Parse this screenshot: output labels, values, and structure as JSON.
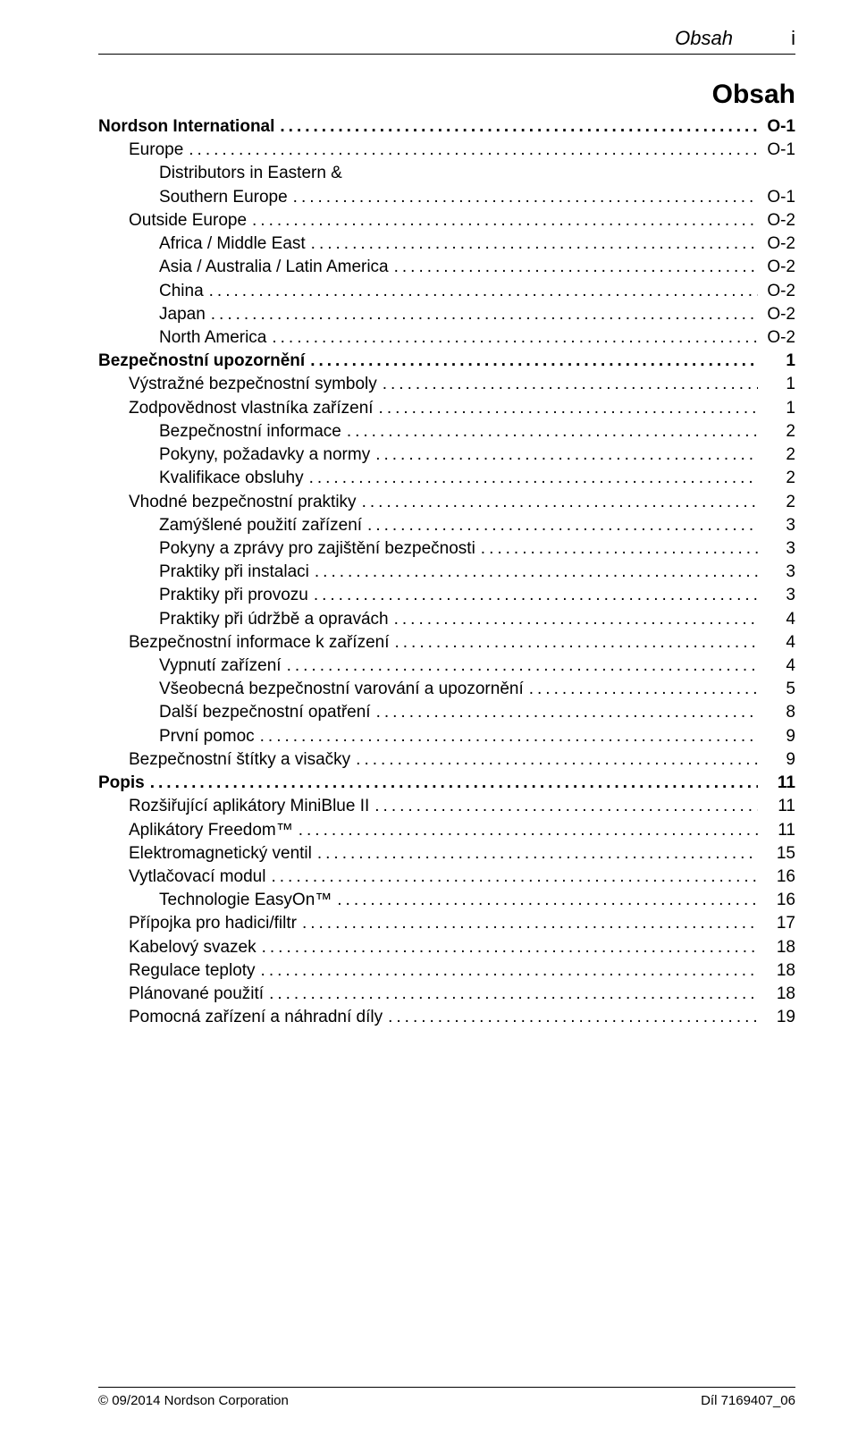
{
  "header": {
    "chapter_name": "Obsah",
    "chapter_num": "i"
  },
  "title": "Obsah",
  "toc": [
    {
      "label": "Nordson International",
      "page": "O-1",
      "indent": 0,
      "bold": true
    },
    {
      "label": "Europe",
      "page": "O-1",
      "indent": 1,
      "bold": false
    },
    {
      "label": "Distributors in Eastern &",
      "page": null,
      "indent": 2,
      "bold": false
    },
    {
      "label": "Southern Europe",
      "page": "O-1",
      "indent": 2,
      "bold": false
    },
    {
      "label": "Outside Europe",
      "page": "O-2",
      "indent": 1,
      "bold": false
    },
    {
      "label": "Africa / Middle East",
      "page": "O-2",
      "indent": 2,
      "bold": false
    },
    {
      "label": "Asia / Australia / Latin America",
      "page": "O-2",
      "indent": 2,
      "bold": false
    },
    {
      "label": "China",
      "page": "O-2",
      "indent": 2,
      "bold": false
    },
    {
      "label": "Japan",
      "page": "O-2",
      "indent": 2,
      "bold": false
    },
    {
      "label": "North America",
      "page": "O-2",
      "indent": 2,
      "bold": false
    },
    {
      "label": "Bezpečnostní upozornění",
      "page": "1",
      "indent": 0,
      "bold": true
    },
    {
      "label": "Výstražné bezpečnostní symboly",
      "page": "1",
      "indent": 1,
      "bold": false
    },
    {
      "label": "Zodpovědnost vlastníka zařízení",
      "page": "1",
      "indent": 1,
      "bold": false
    },
    {
      "label": "Bezpečnostní informace",
      "page": "2",
      "indent": 2,
      "bold": false
    },
    {
      "label": "Pokyny, požadavky a normy",
      "page": "2",
      "indent": 2,
      "bold": false
    },
    {
      "label": "Kvalifikace obsluhy",
      "page": "2",
      "indent": 2,
      "bold": false
    },
    {
      "label": "Vhodné bezpečnostní praktiky",
      "page": "2",
      "indent": 1,
      "bold": false
    },
    {
      "label": "Zamýšlené použití zařízení",
      "page": "3",
      "indent": 2,
      "bold": false
    },
    {
      "label": "Pokyny a zprávy pro zajištění bezpečnosti",
      "page": "3",
      "indent": 2,
      "bold": false
    },
    {
      "label": "Praktiky při instalaci",
      "page": "3",
      "indent": 2,
      "bold": false
    },
    {
      "label": "Praktiky při provozu",
      "page": "3",
      "indent": 2,
      "bold": false
    },
    {
      "label": "Praktiky při údržbě a opravách",
      "page": "4",
      "indent": 2,
      "bold": false
    },
    {
      "label": "Bezpečnostní informace k zařízení",
      "page": "4",
      "indent": 1,
      "bold": false
    },
    {
      "label": "Vypnutí zařízení",
      "page": "4",
      "indent": 2,
      "bold": false
    },
    {
      "label": "Všeobecná bezpečnostní varování a upozornění",
      "page": "5",
      "indent": 2,
      "bold": false
    },
    {
      "label": "Další bezpečnostní opatření",
      "page": "8",
      "indent": 2,
      "bold": false
    },
    {
      "label": "První pomoc",
      "page": "9",
      "indent": 2,
      "bold": false
    },
    {
      "label": "Bezpečnostní štítky a visačky",
      "page": "9",
      "indent": 1,
      "bold": false
    },
    {
      "label": "Popis",
      "page": "11",
      "indent": 0,
      "bold": true
    },
    {
      "label": "Rozšiřující aplikátory MiniBlue II",
      "page": "11",
      "indent": 1,
      "bold": false
    },
    {
      "label": "Aplikátory Freedom™",
      "page": "11",
      "indent": 1,
      "bold": false
    },
    {
      "label": "Elektromagnetický ventil",
      "page": "15",
      "indent": 1,
      "bold": false
    },
    {
      "label": "Vytlačovací modul",
      "page": "16",
      "indent": 1,
      "bold": false
    },
    {
      "label": "Technologie EasyOn™",
      "page": "16",
      "indent": 2,
      "bold": false
    },
    {
      "label": "Přípojka pro hadici/filtr",
      "page": "17",
      "indent": 1,
      "bold": false
    },
    {
      "label": "Kabelový svazek",
      "page": "18",
      "indent": 1,
      "bold": false
    },
    {
      "label": "Regulace teploty",
      "page": "18",
      "indent": 1,
      "bold": false
    },
    {
      "label": "Plánované použití",
      "page": "18",
      "indent": 1,
      "bold": false
    },
    {
      "label": "Pomocná zařízení a náhradní díly",
      "page": "19",
      "indent": 1,
      "bold": false
    }
  ],
  "footer": {
    "left": "© 09/2014 Nordson Corporation",
    "right": "Díl 7169407_06"
  }
}
